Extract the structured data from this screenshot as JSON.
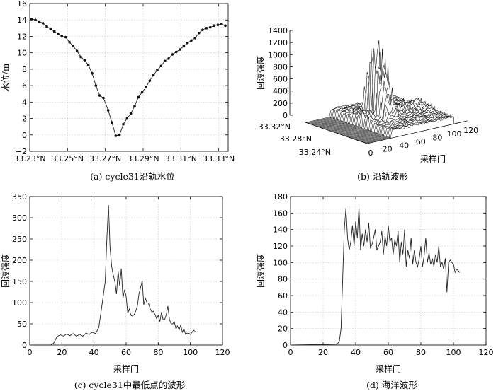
{
  "chart_data": [
    {
      "type": "line",
      "id": "a",
      "caption": "(a) cycle31沿轨水位",
      "ylabel": "水位/m",
      "xlabel": "",
      "xlim": [
        33.23,
        33.335
      ],
      "ylim": [
        -2,
        16
      ],
      "grid": true,
      "x_ticks": [
        33.23,
        33.25,
        33.27,
        33.29,
        33.31,
        33.33
      ],
      "x_tick_labels": [
        "33.23°N",
        "33.25°N",
        "33.27°N",
        "33.29°N",
        "33.31°N",
        "33.33°N"
      ],
      "y_ticks": [
        -2,
        0,
        2,
        4,
        6,
        8,
        10,
        12,
        14,
        16
      ],
      "y_tick_labels": [
        "−2",
        "0",
        "2",
        "4",
        "6",
        "8",
        "10",
        "12",
        "14",
        "16"
      ],
      "series": [
        {
          "marker": "dot",
          "x": [
            33.231,
            33.233,
            33.235,
            33.237,
            33.239,
            33.241,
            33.243,
            33.245,
            33.247,
            33.249,
            33.251,
            33.253,
            33.255,
            33.257,
            33.259,
            33.261,
            33.263,
            33.265,
            33.267,
            33.269,
            33.2715,
            33.2735,
            33.2755,
            33.2775,
            33.2795,
            33.2815,
            33.2835,
            33.2855,
            33.2875,
            33.2895,
            33.2915,
            33.2935,
            33.2955,
            33.2975,
            33.2995,
            33.3015,
            33.3035,
            33.3055,
            33.3075,
            33.3095,
            33.3115,
            33.3135,
            33.3155,
            33.3175,
            33.3195,
            33.3215,
            33.3235,
            33.3255,
            33.3275,
            33.3295,
            33.3315,
            33.3335
          ],
          "y": [
            14.1,
            14.0,
            13.8,
            13.6,
            13.2,
            12.9,
            12.6,
            12.3,
            12.0,
            11.9,
            11.3,
            10.8,
            10.2,
            9.5,
            9.1,
            8.5,
            7.5,
            6.0,
            4.8,
            4.5,
            3.0,
            1.5,
            -0.1,
            0.0,
            1.3,
            2.0,
            2.6,
            3.5,
            4.6,
            5.2,
            5.8,
            6.6,
            7.3,
            7.9,
            8.4,
            9.0,
            9.3,
            9.8,
            10.1,
            10.4,
            10.8,
            11.2,
            11.5,
            11.8,
            12.4,
            12.8,
            13.0,
            13.1,
            13.3,
            13.4,
            13.5,
            13.3
          ]
        }
      ]
    },
    {
      "type": "surface3d",
      "id": "b",
      "caption": "(b) 沿轨波形",
      "zlabel": "回波强度",
      "xlabel": "采样门",
      "z_ticks": [
        0,
        200,
        400,
        600,
        800,
        1000,
        1200,
        1400
      ],
      "z_tick_labels": [
        "0",
        "200",
        "400",
        "600",
        "800",
        "1000",
        "1200",
        "1400"
      ],
      "x_ticks": [
        0,
        20,
        40,
        60,
        80,
        100,
        120
      ],
      "x_tick_labels": [
        "0",
        "20",
        "40",
        "60",
        "80",
        "100",
        "120"
      ],
      "y_tick_labels": [
        "33.32°N",
        "33.28°N",
        "33.24°N"
      ]
    },
    {
      "type": "line",
      "id": "c",
      "caption": "(c) cycle31中最低点的波形",
      "ylabel": "回波强度",
      "xlabel": "采样门",
      "xlim": [
        0,
        120
      ],
      "ylim": [
        0,
        350
      ],
      "grid": true,
      "x_ticks": [
        0,
        20,
        40,
        60,
        80,
        100,
        120
      ],
      "x_tick_labels": [
        "0",
        "20",
        "40",
        "60",
        "80",
        "100",
        "120"
      ],
      "y_ticks": [
        0,
        50,
        100,
        150,
        200,
        250,
        300,
        350
      ],
      "y_tick_labels": [
        "0",
        "50",
        "100",
        "150",
        "200",
        "250",
        "300",
        "350"
      ],
      "series": [
        {
          "x": [
            0,
            13,
            15,
            17,
            19,
            21,
            23,
            25,
            27,
            29,
            31,
            33,
            35,
            37,
            39,
            41,
            43,
            45,
            47,
            48,
            49,
            50,
            51,
            52,
            53,
            54,
            55,
            56,
            57,
            58,
            59,
            60,
            61,
            62,
            63,
            64,
            65,
            66,
            67,
            68,
            69,
            70,
            71,
            72,
            73,
            74,
            75,
            76,
            77,
            78,
            79,
            80,
            81,
            82,
            83,
            84,
            85,
            86,
            87,
            88,
            89,
            90,
            91,
            92,
            93,
            94,
            95,
            96,
            97,
            98,
            99,
            100,
            101,
            102,
            103
          ],
          "y": [
            0,
            0,
            5,
            20,
            24,
            21,
            26,
            22,
            27,
            21,
            25,
            21,
            28,
            25,
            30,
            27,
            42,
            95,
            150,
            250,
            330,
            230,
            185,
            165,
            150,
            120,
            175,
            140,
            180,
            110,
            130,
            115,
            75,
            85,
            70,
            68,
            72,
            80,
            92,
            120,
            135,
            152,
            95,
            110,
            100,
            98,
            85,
            78,
            80,
            72,
            62,
            70,
            55,
            78,
            60,
            60,
            72,
            92,
            60,
            50,
            50,
            55,
            38,
            45,
            35,
            48,
            30,
            38,
            25,
            28,
            28,
            25,
            30,
            35,
            32
          ]
        }
      ]
    },
    {
      "type": "line",
      "id": "d",
      "caption": "(d) 海洋波形",
      "ylabel": "回波强度",
      "xlabel": "采样门",
      "xlim": [
        0,
        120
      ],
      "ylim": [
        0,
        180
      ],
      "grid": true,
      "x_ticks": [
        0,
        20,
        40,
        60,
        80,
        100,
        120
      ],
      "x_tick_labels": [
        "0",
        "20",
        "40",
        "60",
        "80",
        "100",
        "120"
      ],
      "y_ticks": [
        0,
        20,
        40,
        60,
        80,
        100,
        120,
        140,
        160,
        180
      ],
      "y_tick_labels": [
        "0",
        "20",
        "40",
        "60",
        "80",
        "100",
        "120",
        "140",
        "160",
        "180"
      ],
      "series": [
        {
          "x": [
            0,
            28,
            29,
            30,
            31,
            32,
            33,
            34,
            35,
            36,
            37,
            38,
            39,
            40,
            41,
            42,
            43,
            44,
            45,
            46,
            47,
            48,
            49,
            50,
            51,
            52,
            53,
            54,
            55,
            56,
            57,
            58,
            59,
            60,
            61,
            62,
            63,
            64,
            65,
            66,
            67,
            68,
            69,
            70,
            71,
            72,
            73,
            74,
            75,
            76,
            77,
            78,
            79,
            80,
            81,
            82,
            83,
            84,
            85,
            86,
            87,
            88,
            89,
            90,
            91,
            92,
            93,
            94,
            95,
            96,
            97,
            98,
            99,
            100,
            101,
            102,
            103,
            104
          ],
          "y": [
            0,
            1,
            2,
            5,
            20,
            80,
            140,
            166,
            130,
            115,
            125,
            145,
            120,
            150,
            130,
            168,
            115,
            135,
            120,
            140,
            125,
            148,
            118,
            122,
            130,
            140,
            115,
            120,
            125,
            138,
            110,
            132,
            120,
            145,
            125,
            130,
            110,
            128,
            120,
            138,
            100,
            125,
            110,
            140,
            95,
            115,
            105,
            130,
            98,
            115,
            100,
            95,
            105,
            120,
            95,
            108,
            130,
            100,
            112,
            98,
            105,
            95,
            110,
            100,
            120,
            95,
            100,
            92,
            105,
            64,
            100,
            103,
            100,
            98,
            88,
            92,
            90,
            88
          ]
        }
      ]
    }
  ]
}
